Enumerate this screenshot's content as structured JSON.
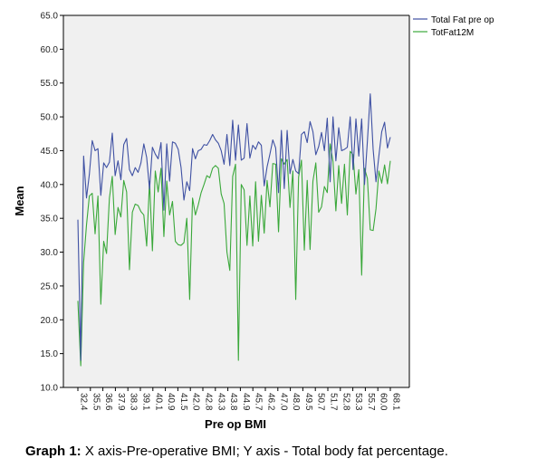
{
  "caption": {
    "prefix": "Graph 1:",
    "text": " X axis-Pre-operative BMI; Y axis - Total body fat percentage."
  },
  "colors": {
    "plot_background": "#f0f0f0",
    "series_1": "#3f51a3",
    "series_2": "#3aa83a",
    "axis": "#000000"
  },
  "chart_data": {
    "type": "line",
    "xlabel": "Pre op BMI",
    "ylabel": "Mean",
    "ylim": [
      10.0,
      65.0
    ],
    "y_ticks": [
      "10.0",
      "15.0",
      "20.0",
      "25.0",
      "30.0",
      "35.0",
      "40.0",
      "45.0",
      "50.0",
      "55.0",
      "60.0",
      "65.0"
    ],
    "x_tick_labels": [
      "32.4",
      "35.5",
      "36.6",
      "37.9",
      "38.3",
      "39.1",
      "40.1",
      "40.9",
      "41.5",
      "42.0",
      "42.8",
      "43.3",
      "43.8",
      "44.9",
      "45.7",
      "46.2",
      "47.0",
      "48.0",
      "49.5",
      "50.7",
      "51.7",
      "52.8",
      "53.3",
      "55.7",
      "60.0",
      "68.1"
    ],
    "grid": false,
    "legend": "top-right",
    "series": [
      {
        "name": "Total Fat pre op",
        "values": [
          34.8,
          14.0,
          44.2,
          38.0,
          41.5,
          46.5,
          45.0,
          45.3,
          38.4,
          43.2,
          42.5,
          43.3,
          47.6,
          41.3,
          43.5,
          40.7,
          45.9,
          46.8,
          42.2,
          41.3,
          42.5,
          41.8,
          43.2,
          46.0,
          44.0,
          39.3,
          45.5,
          44.5,
          43.8,
          46.2,
          36.2,
          46.0,
          40.5,
          46.3,
          46.1,
          45.2,
          42.5,
          37.7,
          40.4,
          39.1,
          45.3,
          43.8,
          45.0,
          45.2,
          45.9,
          45.8,
          46.5,
          47.4,
          46.6,
          46.1,
          45.0,
          43.0,
          47.4,
          42.8,
          49.5,
          43.6,
          48.8,
          43.6,
          43.9,
          49.0,
          43.9,
          45.8,
          45.2,
          46.3,
          45.8,
          39.8,
          42.6,
          44.5,
          46.6,
          45.4,
          38.8,
          48.0,
          39.4,
          48.0,
          41.6,
          43.7,
          42.0,
          41.6,
          47.4,
          47.8,
          46.2,
          49.3,
          47.8,
          44.4,
          45.6,
          47.7,
          45.0,
          49.8,
          40.4,
          50.0,
          43.5,
          48.4,
          45.0,
          45.2,
          45.5,
          50.0,
          42.2,
          49.7,
          44.2,
          49.7,
          40.0,
          46.4,
          53.4,
          45.2,
          40.4,
          44.2,
          47.8,
          49.2,
          45.4,
          47.0
        ]
      },
      {
        "name": "TotFat12M",
        "values": [
          22.8,
          13.2,
          28.5,
          34.0,
          38.3,
          38.7,
          32.7,
          38.3,
          22.3,
          31.6,
          29.8,
          38.0,
          41.2,
          32.6,
          36.6,
          35.2,
          40.6,
          38.9,
          27.4,
          35.9,
          37.1,
          36.9,
          36.0,
          35.5,
          30.9,
          40.5,
          30.2,
          42.0,
          38.9,
          42.4,
          32.3,
          40.5,
          35.5,
          37.5,
          31.6,
          31.1,
          31.0,
          31.4,
          35.0,
          23.0,
          38.0,
          35.5,
          37.0,
          38.8,
          40.0,
          41.3,
          41.0,
          42.4,
          42.8,
          42.4,
          38.6,
          37.2,
          30.0,
          27.3,
          41.2,
          43.0,
          14.0,
          40.0,
          39.2,
          31.0,
          38.3,
          30.9,
          40.4,
          31.6,
          38.4,
          32.8,
          40.6,
          36.7,
          43.1,
          43.0,
          33.0,
          43.8,
          43.0,
          43.7,
          36.6,
          42.0,
          23.0,
          41.1,
          43.6,
          30.3,
          40.6,
          30.4,
          40.5,
          43.2,
          35.9,
          36.7,
          39.7,
          38.8,
          46.0,
          43.4,
          36.1,
          42.8,
          37.2,
          43.0,
          35.5,
          44.9,
          44.4,
          38.6,
          42.2,
          26.6,
          42.4,
          40.9,
          33.3,
          33.2,
          36.4,
          42.0,
          40.2,
          42.9,
          40.1,
          43.5
        ]
      }
    ]
  }
}
